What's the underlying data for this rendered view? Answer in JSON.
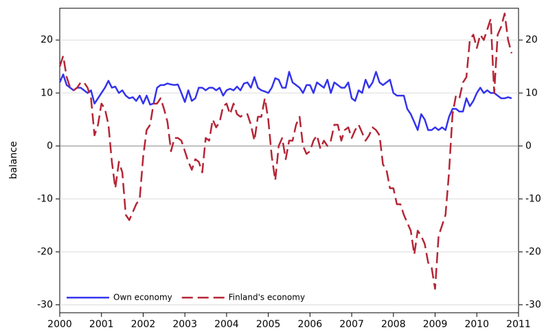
{
  "chart_data": {
    "type": "line",
    "ylabel": "balance",
    "xlim": [
      2000,
      2011
    ],
    "xticks": [
      2000,
      2001,
      2002,
      2003,
      2004,
      2005,
      2006,
      2007,
      2008,
      2009,
      2010,
      2011
    ],
    "ylim": [
      -31.5,
      26
    ],
    "yticks": [
      -30,
      -20,
      -10,
      0,
      10,
      20
    ],
    "y2lim": [
      -31.5,
      26
    ],
    "y2ticks": [
      -30,
      -20,
      -10,
      0,
      10,
      20
    ],
    "grid": true,
    "legend": "lower left",
    "x": [
      2000,
      2000.083,
      2000.167,
      2000.25,
      2000.333,
      2000.417,
      2000.5,
      2000.583,
      2000.667,
      2000.75,
      2000.833,
      2000.917,
      2001,
      2001.083,
      2001.167,
      2001.25,
      2001.333,
      2001.417,
      2001.5,
      2001.583,
      2001.667,
      2001.75,
      2001.833,
      2001.917,
      2002,
      2002.083,
      2002.167,
      2002.25,
      2002.333,
      2002.417,
      2002.5,
      2002.583,
      2002.667,
      2002.75,
      2002.833,
      2002.917,
      2003,
      2003.083,
      2003.167,
      2003.25,
      2003.333,
      2003.417,
      2003.5,
      2003.583,
      2003.667,
      2003.75,
      2003.833,
      2003.917,
      2004,
      2004.083,
      2004.167,
      2004.25,
      2004.333,
      2004.417,
      2004.5,
      2004.583,
      2004.667,
      2004.75,
      2004.833,
      2004.917,
      2005,
      2005.083,
      2005.167,
      2005.25,
      2005.333,
      2005.417,
      2005.5,
      2005.583,
      2005.667,
      2005.75,
      2005.833,
      2005.917,
      2006,
      2006.083,
      2006.167,
      2006.25,
      2006.333,
      2006.417,
      2006.5,
      2006.583,
      2006.667,
      2006.75,
      2006.833,
      2006.917,
      2007,
      2007.083,
      2007.167,
      2007.25,
      2007.333,
      2007.417,
      2007.5,
      2007.583,
      2007.667,
      2007.75,
      2007.833,
      2007.917,
      2008,
      2008.083,
      2008.167,
      2008.25,
      2008.333,
      2008.417,
      2008.5,
      2008.583,
      2008.667,
      2008.75,
      2008.833,
      2008.917,
      2009,
      2009.083,
      2009.167,
      2009.25,
      2009.333,
      2009.417,
      2009.5,
      2009.583,
      2009.667,
      2009.75,
      2009.833,
      2009.917,
      2010,
      2010.083,
      2010.167,
      2010.25,
      2010.333,
      2010.417,
      2010.5,
      2010.583,
      2010.667,
      2010.75,
      2010.833
    ],
    "series": [
      {
        "name": "Own economy",
        "color": "#3333ee",
        "line_style": "solid",
        "values": [
          12,
          13.5,
          11.5,
          11,
          10.5,
          11,
          11,
          10.5,
          10,
          10.5,
          8,
          9,
          10,
          11,
          12.3,
          11,
          11.2,
          10,
          10.5,
          9.5,
          9,
          9.2,
          8.5,
          9.5,
          8,
          9.5,
          7.8,
          8,
          11,
          11.5,
          11.5,
          11.8,
          11.6,
          11.5,
          11.6,
          10,
          8.3,
          10.5,
          8.5,
          9,
          11,
          11,
          10.5,
          11,
          11,
          10.5,
          11,
          9.5,
          10.5,
          10.8,
          10.5,
          11.2,
          10.5,
          11.8,
          12,
          11,
          13,
          11,
          10.5,
          10.3,
          10,
          11,
          12.8,
          12.5,
          11,
          11,
          14,
          12,
          11.5,
          11,
          10,
          11.5,
          11.5,
          10,
          12,
          11.5,
          11,
          12.5,
          10,
          12,
          11.5,
          11,
          11,
          12,
          9,
          8.5,
          10.5,
          10,
          12.5,
          11,
          12,
          14,
          12,
          11.5,
          12,
          12.5,
          10,
          9.5,
          9.5,
          9.5,
          7,
          6,
          4.5,
          3,
          6,
          5,
          3,
          3,
          3.5,
          3,
          3.5,
          3,
          5.5,
          7,
          7,
          6.5,
          6.5,
          9,
          7.5,
          8.5,
          10,
          11,
          10,
          10.5,
          10,
          10,
          9.5,
          9,
          9,
          9.2,
          9
        ]
      },
      {
        "name": "Finland's economy",
        "color": "#b52535",
        "line_style": "dashed",
        "values": [
          15,
          17,
          13,
          11,
          10.5,
          11,
          12,
          12,
          11,
          9,
          2,
          4,
          8,
          7,
          4,
          -3,
          -8,
          -3,
          -5,
          -13,
          -14,
          -12.5,
          -11,
          -10,
          -2,
          3,
          4,
          8,
          8,
          9,
          7,
          4.5,
          -1,
          1.5,
          1.5,
          1,
          -1,
          -3,
          -4.5,
          -2.5,
          -3,
          -5,
          1.5,
          1,
          5,
          3.5,
          4.5,
          7.5,
          8,
          6,
          8,
          6,
          5.5,
          6,
          6,
          4,
          1,
          5.5,
          5.5,
          9,
          5,
          -2,
          -6.5,
          0,
          1.5,
          -2.5,
          1,
          1,
          4,
          5.5,
          0,
          -1.5,
          -1,
          1,
          2,
          -0.5,
          1,
          0,
          1,
          4,
          4,
          1,
          3,
          3.5,
          1.5,
          3,
          4,
          2.5,
          1,
          2,
          3.5,
          3,
          2,
          -3.5,
          -4.5,
          -8,
          -8,
          -11,
          -11,
          -13,
          -14.5,
          -16,
          -20.5,
          -16,
          -17,
          -18.5,
          -22,
          -23,
          -27,
          -17,
          -15,
          -13,
          -5,
          6,
          9.5,
          9,
          12,
          13,
          20,
          21,
          18.5,
          21,
          20,
          22,
          24,
          10,
          21,
          22.5,
          25,
          20,
          17.5
        ]
      }
    ]
  }
}
